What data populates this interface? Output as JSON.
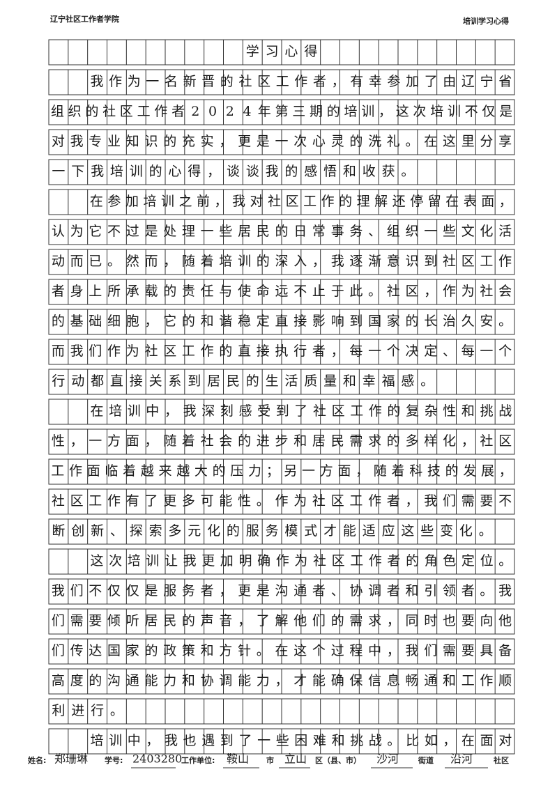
{
  "header": {
    "left": "辽宁社区工作者学院",
    "right": "培训学习心得"
  },
  "title": "学习心得",
  "paragraphs": [
    [
      "我作为一名新晋的社区工作者，有幸参加了由辽宁省",
      "组织的社区工作者2024年第三期的培训，这次培训不仅是",
      "对我专业知识的充实，更是一次心灵的洗礼。在这里分享",
      "一下我培训的心得，谈谈我的感悟和收获。"
    ],
    [
      "在参加培训之前，我对社区工作的理解还停留在表面，",
      "认为它不过是处理一些居民的日常事务、组织一些文化活",
      "动而已。然而，随着培训的深入，我逐渐意识到社区工作",
      "者身上所承载的责任与使命远不止于此。社区，作为社会",
      "的基础细胞，它的和谐稳定直接影响到国家的长治久安。",
      "而我们作为社区工作的直接执行者，每一个决定、每一个",
      "行动都直接关系到居民的生活质量和幸福感。"
    ],
    [
      "在培训中，我深刻感受到了社区工作的复杂性和挑战",
      "性，一方面，随着社会的进步和居民需求的多样化，社区",
      "工作面临着越来越大的压力；另一方面，随着科技的发展，",
      "社区工作有了更多可能性。作为社区工作者，我们需要不",
      "断创新、探索多元化的服务模式才能适应这些变化。"
    ],
    [
      "这次培训让我更加明确作为社区工作者的角色定位。",
      "我们不仅仅是服务者，更是沟通者、协调者和引领者。我",
      "们需要倾听居民的声音，了解他们的需求，同时也要向他",
      "们传达国家的政策和方针。在这个过程中，我们需要具备",
      "高度的沟通能力和协调能力，才能确保信息畅通和工作顺",
      "利进行。"
    ],
    [
      "培训中，我也遇到了一些困难和挑战。比如，在面对"
    ]
  ],
  "footer": {
    "name_label": "姓名:",
    "name": "郑珊琳",
    "id_label": "学号:",
    "id": "2403280",
    "unit_label": "工作单位:",
    "city": "鞍山",
    "city_label": "市",
    "district": "立山",
    "district_label": "区（县、市）",
    "street": "沙河",
    "street_label": "街道",
    "community": "沿河",
    "community_label": "社区"
  }
}
